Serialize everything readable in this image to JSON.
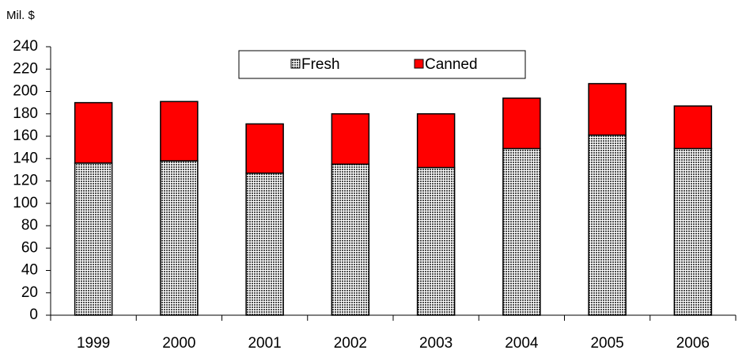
{
  "chart_data": {
    "type": "stacked-bar",
    "y_label": "Mil. $",
    "categories": [
      "1999",
      "2000",
      "2001",
      "2002",
      "2003",
      "2004",
      "2005",
      "2006"
    ],
    "series": [
      {
        "name": "Fresh",
        "color": "#4d4d4d",
        "values": [
          136,
          138,
          127,
          135,
          132,
          149,
          161,
          149
        ]
      },
      {
        "name": "Canned",
        "color": "#ff0000",
        "values": [
          54,
          53,
          44,
          45,
          48,
          45,
          46,
          38
        ]
      }
    ],
    "ylim": [
      0,
      240
    ],
    "yticks": [
      0,
      20,
      40,
      60,
      80,
      100,
      120,
      140,
      160,
      180,
      200,
      220,
      240
    ],
    "grid": false,
    "legend": "top"
  }
}
